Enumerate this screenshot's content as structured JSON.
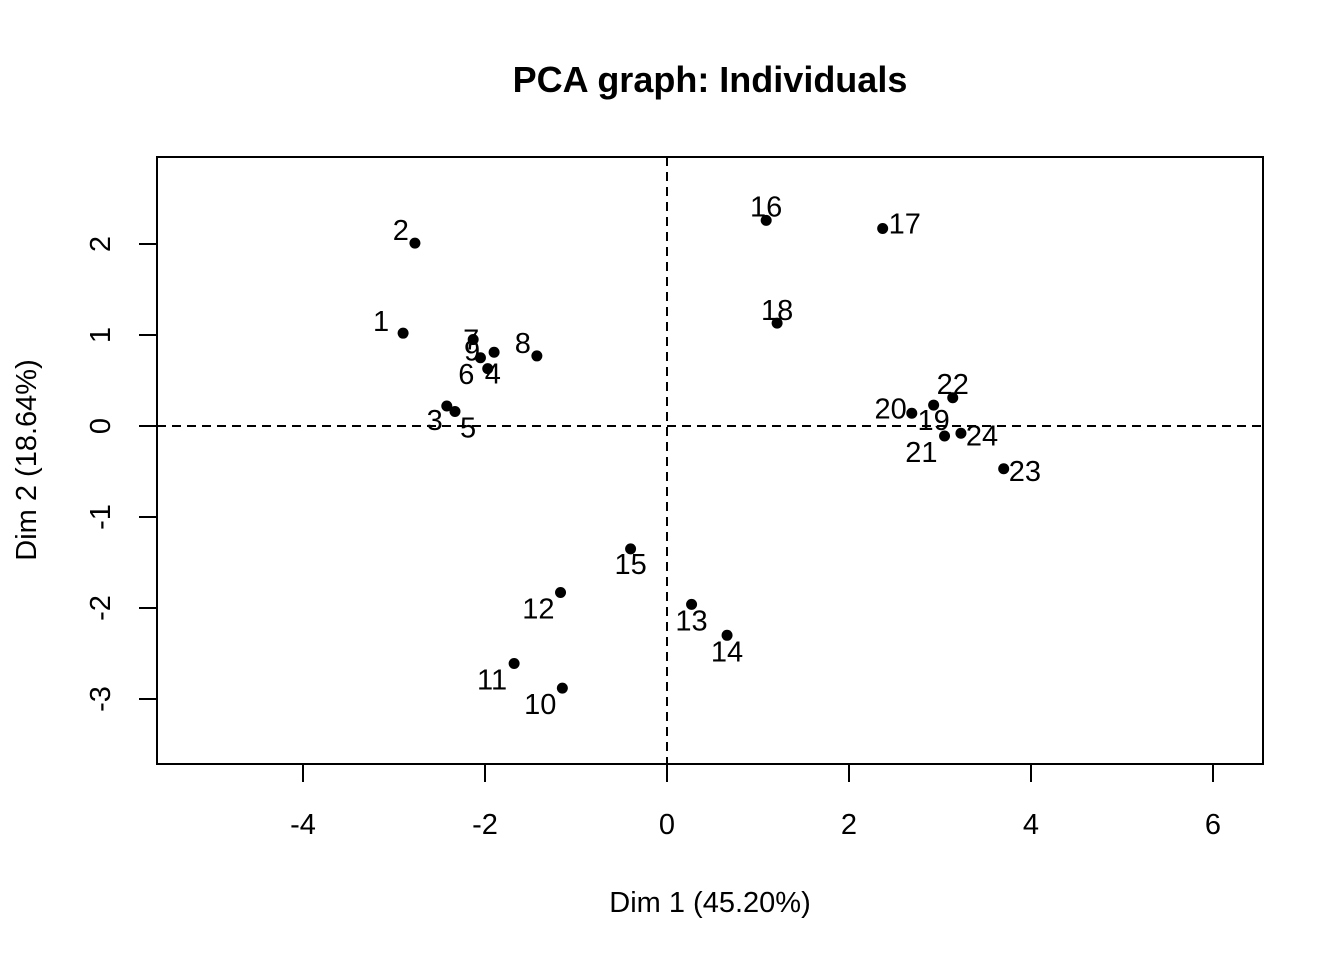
{
  "chart_data": {
    "type": "scatter",
    "title": "PCA graph: Individuals",
    "xlabel": "Dim 1 (45.20%)",
    "ylabel": "Dim 2 (18.64%)",
    "xlim": [
      -5.5,
      6.5
    ],
    "ylim": [
      -3.7,
      2.9
    ],
    "x_ticks": [
      -4,
      -2,
      0,
      2,
      4,
      6
    ],
    "y_ticks": [
      -3,
      -2,
      -1,
      0,
      1,
      2
    ],
    "reference_lines": {
      "x": 0,
      "y": 0,
      "style": "dashed"
    },
    "grid": false,
    "points": [
      {
        "label": "1",
        "x": -2.9,
        "y": 1.02
      },
      {
        "label": "2",
        "x": -2.77,
        "y": 2.01
      },
      {
        "label": "3",
        "x": -2.42,
        "y": 0.22
      },
      {
        "label": "4",
        "x": -1.97,
        "y": 0.63
      },
      {
        "label": "5",
        "x": -2.33,
        "y": 0.16
      },
      {
        "label": "6",
        "x": -2.05,
        "y": 0.75
      },
      {
        "label": "7",
        "x": -2.13,
        "y": 0.95
      },
      {
        "label": "8",
        "x": -1.43,
        "y": 0.77
      },
      {
        "label": "9",
        "x": -1.9,
        "y": 0.81
      },
      {
        "label": "10",
        "x": -1.15,
        "y": -2.88
      },
      {
        "label": "11",
        "x": -1.68,
        "y": -2.61
      },
      {
        "label": "12",
        "x": -1.17,
        "y": -1.83
      },
      {
        "label": "13",
        "x": 0.27,
        "y": -1.96
      },
      {
        "label": "14",
        "x": 0.66,
        "y": -2.3
      },
      {
        "label": "15",
        "x": -0.4,
        "y": -1.35
      },
      {
        "label": "16",
        "x": 1.09,
        "y": 2.26
      },
      {
        "label": "17",
        "x": 2.37,
        "y": 2.17
      },
      {
        "label": "18",
        "x": 1.21,
        "y": 1.13
      },
      {
        "label": "19",
        "x": 2.93,
        "y": 0.23
      },
      {
        "label": "20",
        "x": 2.69,
        "y": 0.14
      },
      {
        "label": "21",
        "x": 3.05,
        "y": -0.11
      },
      {
        "label": "22",
        "x": 3.14,
        "y": 0.31
      },
      {
        "label": "23",
        "x": 3.7,
        "y": -0.47
      },
      {
        "label": "24",
        "x": 3.23,
        "y": -0.08
      }
    ]
  }
}
